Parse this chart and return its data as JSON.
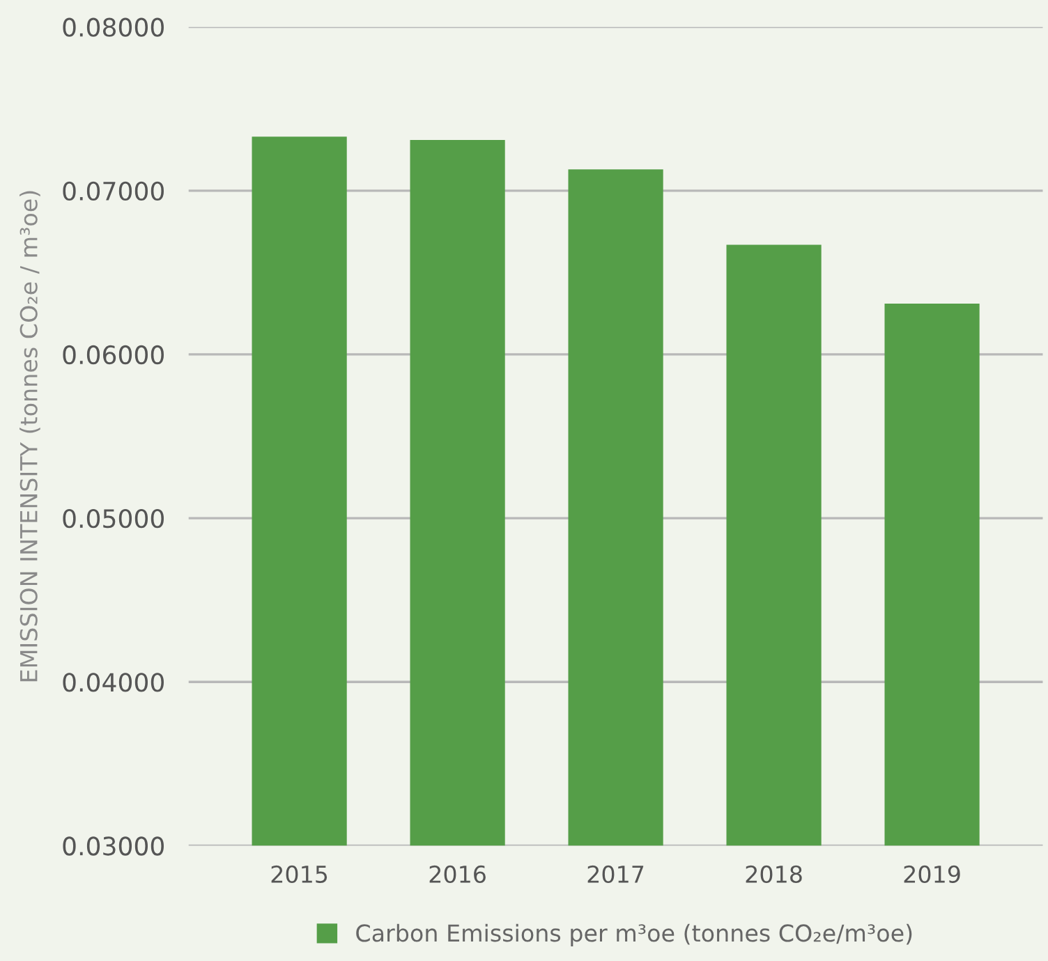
{
  "chart_data": {
    "type": "bar",
    "ylabel": "EMISSION INTENSITY (tonnes CO₂e / m³oe)",
    "categories": [
      "2015",
      "2016",
      "2017",
      "2018",
      "2019"
    ],
    "series": [
      {
        "name": "Carbon Emissions per m³oe (tonnes CO₂e/m³oe)",
        "color": "#559e48",
        "values": [
          0.0733,
          0.0731,
          0.0713,
          0.0667,
          0.0631
        ]
      }
    ],
    "ylim": [
      0.03,
      0.08
    ],
    "yticks": [
      {
        "value": 0.03,
        "label": "0.03000"
      },
      {
        "value": 0.04,
        "label": "0.04000"
      },
      {
        "value": 0.05,
        "label": "0.05000"
      },
      {
        "value": 0.06,
        "label": "0.06000"
      },
      {
        "value": 0.07,
        "label": "0.07000"
      },
      {
        "value": 0.08,
        "label": "0.08000"
      }
    ],
    "grid": "y",
    "legend": "bottom"
  }
}
